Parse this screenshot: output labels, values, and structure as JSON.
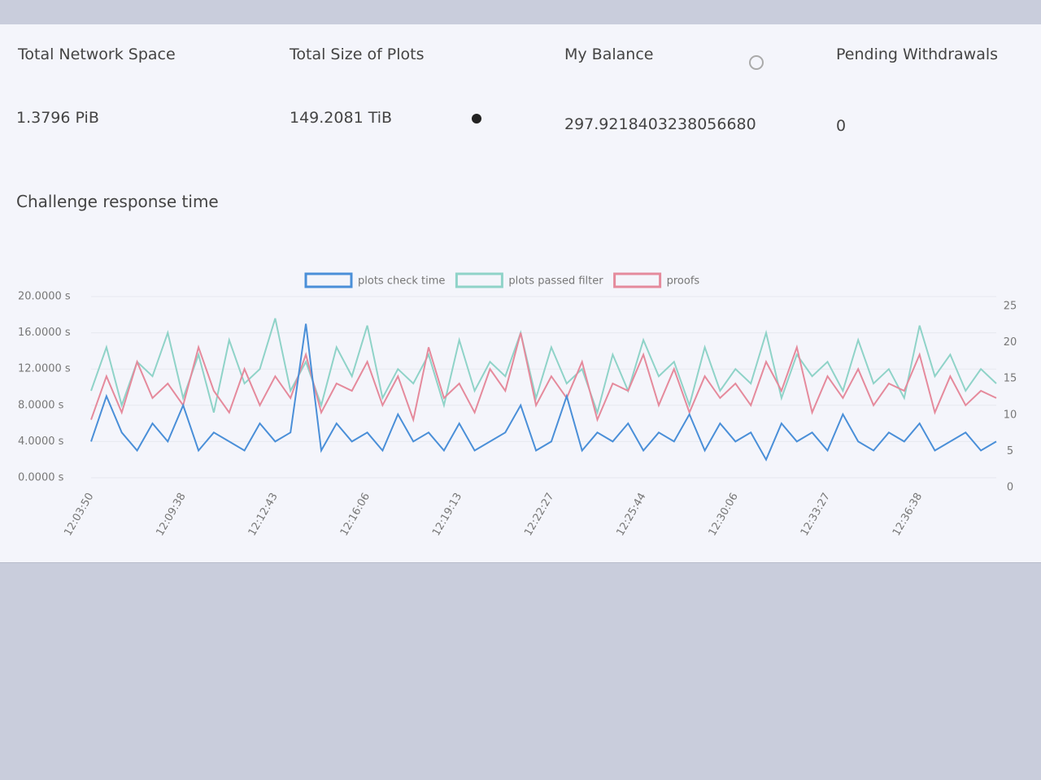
{
  "stats": [
    {
      "label": "Total Network Space",
      "value": "1.3796 PiB"
    },
    {
      "label": "Total Size of Plots",
      "value": "149.2081 TiB"
    },
    {
      "label": "My Balance",
      "value": "297.9218403238056680"
    },
    {
      "label": "Pending Withdrawals",
      "value": "0"
    }
  ],
  "section_title": "Challenge response time",
  "chart_data": {
    "type": "line",
    "categories": [
      "12:03:50",
      null,
      null,
      null,
      null,
      null,
      "12:09:38",
      null,
      null,
      null,
      null,
      null,
      "12:12:43",
      null,
      null,
      null,
      null,
      null,
      "12:16:06",
      null,
      null,
      null,
      null,
      null,
      "12:19:13",
      null,
      null,
      null,
      null,
      null,
      "12:22:27",
      null,
      null,
      null,
      null,
      null,
      "12:25:44",
      null,
      null,
      null,
      null,
      null,
      "12:30:06",
      null,
      null,
      null,
      null,
      null,
      "12:33:27",
      null,
      null,
      null,
      null,
      null,
      "12:36:38",
      null,
      null,
      null,
      null,
      null
    ],
    "series": [
      {
        "name": "plots check time",
        "color": "#4a8fd8",
        "values": [
          4,
          9,
          5,
          3,
          6,
          4,
          8,
          3,
          5,
          4,
          3,
          6,
          4,
          5,
          17,
          3,
          6,
          4,
          5,
          3,
          7,
          4,
          5,
          3,
          6,
          3,
          4,
          5,
          8,
          3,
          4,
          9,
          3,
          5,
          4,
          6,
          3,
          5,
          4,
          7,
          3,
          6,
          4,
          5,
          2,
          6,
          4,
          5,
          3,
          7,
          4,
          3,
          5,
          4,
          6,
          3,
          4,
          5,
          3,
          4
        ]
      },
      {
        "name": "plots passed filter",
        "color": "#8fd3c8",
        "axis": "y2",
        "values": [
          12,
          18,
          10,
          16,
          14,
          20,
          11,
          17,
          9,
          19,
          13,
          15,
          22,
          12,
          16,
          10,
          18,
          14,
          21,
          11,
          15,
          13,
          17,
          10,
          19,
          12,
          16,
          14,
          20,
          11,
          18,
          13,
          15,
          9,
          17,
          12,
          19,
          14,
          16,
          10,
          18,
          12,
          15,
          13,
          20,
          11,
          17,
          14,
          16,
          12,
          19,
          13,
          15,
          11,
          21,
          14,
          17,
          12,
          15,
          13
        ]
      },
      {
        "name": "proofs",
        "color": "#e58a9c",
        "axis": "y2",
        "values": [
          8,
          14,
          9,
          16,
          11,
          13,
          10,
          18,
          12,
          9,
          15,
          10,
          14,
          11,
          17,
          9,
          13,
          12,
          16,
          10,
          14,
          8,
          18,
          11,
          13,
          9,
          15,
          12,
          20,
          10,
          14,
          11,
          16,
          8,
          13,
          12,
          17,
          10,
          15,
          9,
          14,
          11,
          13,
          10,
          16,
          12,
          18,
          9,
          14,
          11,
          15,
          10,
          13,
          12,
          17,
          9,
          14,
          10,
          12,
          11
        ]
      }
    ],
    "ylim": [
      0,
      20
    ],
    "yticks": [
      {
        "value": 0,
        "label": "0.0000 s"
      },
      {
        "value": 4,
        "label": "4.0000 s"
      },
      {
        "value": 8,
        "label": "8.0000 s"
      },
      {
        "value": 12,
        "label": "12.0000 s"
      },
      {
        "value": 16,
        "label": "16.0000 s"
      },
      {
        "value": 20,
        "label": "20.0000 s"
      }
    ],
    "y2lim": [
      0,
      25
    ],
    "y2ticks": [
      0,
      5,
      10,
      15,
      20,
      25
    ]
  }
}
